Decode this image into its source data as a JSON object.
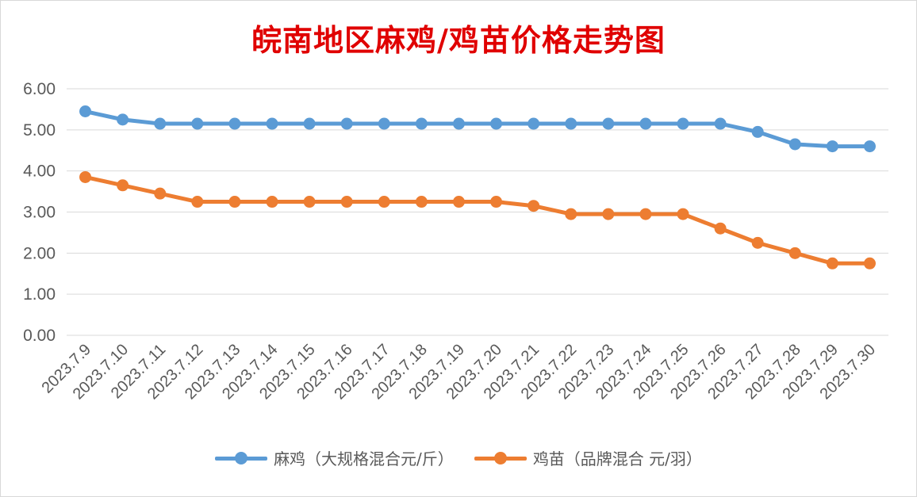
{
  "chart_data": {
    "type": "line",
    "title": "皖南地区麻鸡/鸡苗价格走势图",
    "categories": [
      "2023.7.9",
      "2023.7.10",
      "2023.7.11",
      "2023.7.12",
      "2023.7.13",
      "2023.7.14",
      "2023.7.15",
      "2023.7.16",
      "2023.7.17",
      "2023.7.18",
      "2023.7.19",
      "2023.7.20",
      "2023.7.21",
      "2023.7.22",
      "2023.7.23",
      "2023.7.24",
      "2023.7.25",
      "2023.7.26",
      "2023.7.27",
      "2023.7.28",
      "2023.7.29",
      "2023.7.30"
    ],
    "series": [
      {
        "name": "麻鸡（大规格混合元/斤）",
        "color": "#5b9bd5",
        "values": [
          5.45,
          5.25,
          5.15,
          5.15,
          5.15,
          5.15,
          5.15,
          5.15,
          5.15,
          5.15,
          5.15,
          5.15,
          5.15,
          5.15,
          5.15,
          5.15,
          5.15,
          5.15,
          4.95,
          4.65,
          4.6,
          4.6
        ]
      },
      {
        "name": "鸡苗（品牌混合 元/羽）",
        "color": "#ed7d31",
        "values": [
          3.85,
          3.65,
          3.45,
          3.25,
          3.25,
          3.25,
          3.25,
          3.25,
          3.25,
          3.25,
          3.25,
          3.25,
          3.15,
          2.95,
          2.95,
          2.95,
          2.95,
          2.6,
          2.25,
          2.0,
          1.75,
          1.75
        ]
      }
    ],
    "ylim": [
      0,
      6
    ],
    "yticks": [
      "0.00",
      "1.00",
      "2.00",
      "3.00",
      "4.00",
      "5.00",
      "6.00"
    ],
    "xlabel": "",
    "ylabel": "",
    "grid": true,
    "legend": "bottom"
  }
}
